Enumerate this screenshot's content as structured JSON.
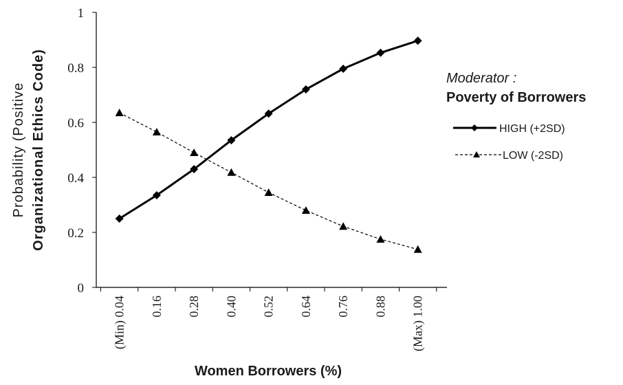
{
  "chart_data": {
    "type": "line",
    "categories": [
      "(Min) 0.04",
      "0.16",
      "0.28",
      "0.40",
      "0.52",
      "0.64",
      "0.76",
      "0.88",
      "(Max) 1.00"
    ],
    "x_values": [
      0.04,
      0.16,
      0.28,
      0.4,
      0.52,
      0.64,
      0.76,
      0.88,
      1.0
    ],
    "series": [
      {
        "name": "HIGH (+2SD)",
        "marker": "diamond",
        "line_style": "solid",
        "color": "#000000",
        "values": [
          0.25,
          0.335,
          0.43,
          0.535,
          0.632,
          0.72,
          0.795,
          0.853,
          0.897
        ]
      },
      {
        "name": "LOW (-2SD)",
        "marker": "triangle",
        "line_style": "dashed",
        "color": "#000000",
        "values": [
          0.635,
          0.565,
          0.49,
          0.418,
          0.345,
          0.28,
          0.222,
          0.175,
          0.138
        ]
      }
    ],
    "ylim": [
      0,
      1
    ],
    "yticks": [
      "0",
      "0.2",
      "0.4",
      "0.6",
      "0.8",
      "1"
    ],
    "ytick_values": [
      0,
      0.2,
      0.4,
      0.6,
      0.8,
      1
    ],
    "ylabel_line1": "Probability (Positive",
    "ylabel_line2": "Organizational Ethics Code)",
    "xlabel": "Women Borrowers (%)",
    "legend": {
      "title_italic": "Moderator :",
      "title_bold": "Poverty of Borrowers",
      "placement": "right"
    },
    "grid": false
  }
}
